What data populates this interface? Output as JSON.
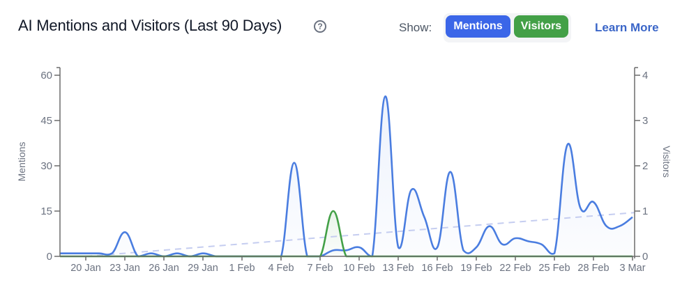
{
  "header": {
    "title": "AI Mentions and Visitors (Last 90 Days)",
    "help_icon": "question-circle-icon",
    "show_label": "Show:",
    "toggles": [
      {
        "label": "Mentions",
        "active": true,
        "color": "#3b66e8"
      },
      {
        "label": "Visitors",
        "active": true,
        "color": "#43a047"
      }
    ],
    "learn_more": "Learn More"
  },
  "colors": {
    "mentions": "#4a7de0",
    "visitors": "#43a047",
    "trend": "#c5cdf0",
    "axis": "#6b6b6b",
    "tick_text": "#6b7280"
  },
  "chart_data": {
    "type": "line",
    "title": "AI Mentions and Visitors (Last 90 Days)",
    "xlabel": "",
    "ylabel": "Mentions",
    "y2label": "Visitors",
    "ylim": [
      0,
      60
    ],
    "y2lim": [
      0,
      4
    ],
    "yticks": [
      0,
      15,
      30,
      45,
      60
    ],
    "y2ticks": [
      0,
      1,
      2,
      3,
      4
    ],
    "x_tick_labels": [
      "20 Jan",
      "23 Jan",
      "26 Jan",
      "29 Jan",
      "1 Feb",
      "4 Feb",
      "7 Feb",
      "10 Feb",
      "13 Feb",
      "16 Feb",
      "19 Feb",
      "22 Feb",
      "25 Feb",
      "28 Feb",
      "3 Mar"
    ],
    "x": [
      "18 Jan",
      "19 Jan",
      "20 Jan",
      "21 Jan",
      "22 Jan",
      "23 Jan",
      "24 Jan",
      "25 Jan",
      "26 Jan",
      "27 Jan",
      "28 Jan",
      "29 Jan",
      "30 Jan",
      "31 Jan",
      "1 Feb",
      "2 Feb",
      "3 Feb",
      "4 Feb",
      "5 Feb",
      "6 Feb",
      "7 Feb",
      "8 Feb",
      "9 Feb",
      "10 Feb",
      "11 Feb",
      "12 Feb",
      "13 Feb",
      "14 Feb",
      "15 Feb",
      "16 Feb",
      "17 Feb",
      "18 Feb",
      "19 Feb",
      "20 Feb",
      "21 Feb",
      "22 Feb",
      "23 Feb",
      "24 Feb",
      "25 Feb",
      "26 Feb",
      "27 Feb",
      "28 Feb",
      "1 Mar",
      "2 Mar",
      "3 Mar"
    ],
    "series": [
      {
        "name": "Mentions",
        "axis": "left",
        "values": [
          1,
          1,
          1,
          1,
          1,
          8,
          0,
          1,
          0,
          1,
          0,
          1,
          0,
          0,
          0,
          0,
          0,
          0,
          31,
          0,
          0,
          2,
          2,
          3,
          0,
          53,
          3,
          22,
          13,
          3,
          28,
          2,
          3,
          10,
          4,
          6,
          5,
          4,
          1,
          37,
          16,
          18,
          10,
          10,
          13
        ]
      },
      {
        "name": "Visitors",
        "axis": "right",
        "values": [
          0,
          0,
          0,
          0,
          0,
          0,
          0,
          0,
          0,
          0,
          0,
          0,
          0,
          0,
          0,
          0,
          0,
          0,
          0,
          0,
          0,
          1,
          0,
          0,
          0,
          0,
          0,
          0,
          0,
          0,
          0,
          0,
          0,
          0,
          0,
          0,
          0,
          0,
          0,
          0,
          0,
          0,
          0,
          0,
          0
        ]
      },
      {
        "name": "Mentions trend",
        "axis": "left",
        "style": "dashed",
        "values_start_end": [
          0,
          14.5
        ]
      }
    ],
    "grid": false,
    "legend": "toggle buttons in header"
  }
}
